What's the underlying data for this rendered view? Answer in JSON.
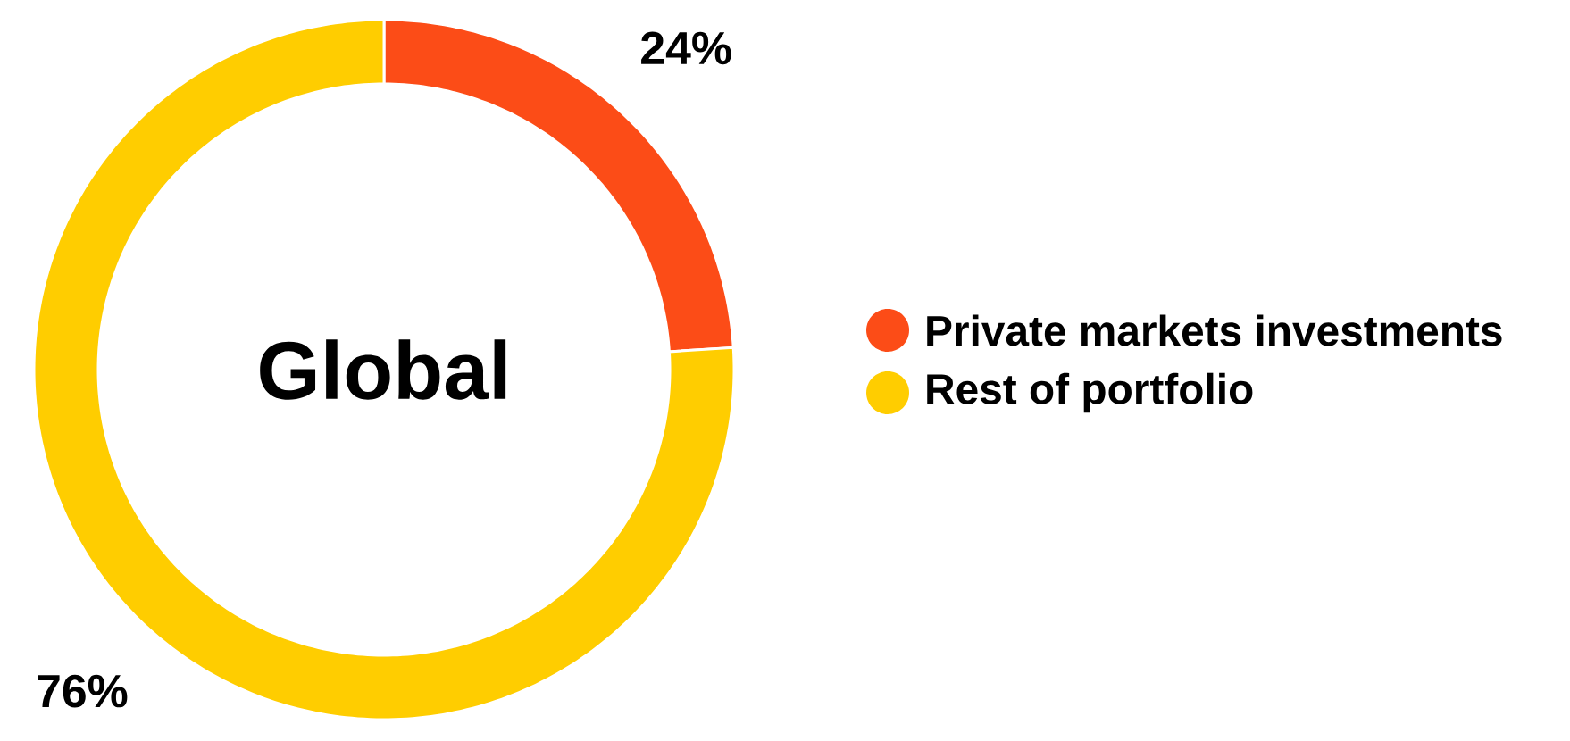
{
  "chart_data": {
    "type": "donut",
    "title": "Global",
    "categories": [
      "Private markets investments",
      "Rest of portfolio"
    ],
    "values": [
      24,
      76
    ],
    "colors": [
      "#fc4c17",
      "#ffcd00"
    ],
    "value_labels": [
      "24%",
      "76%"
    ],
    "legend": "right"
  }
}
